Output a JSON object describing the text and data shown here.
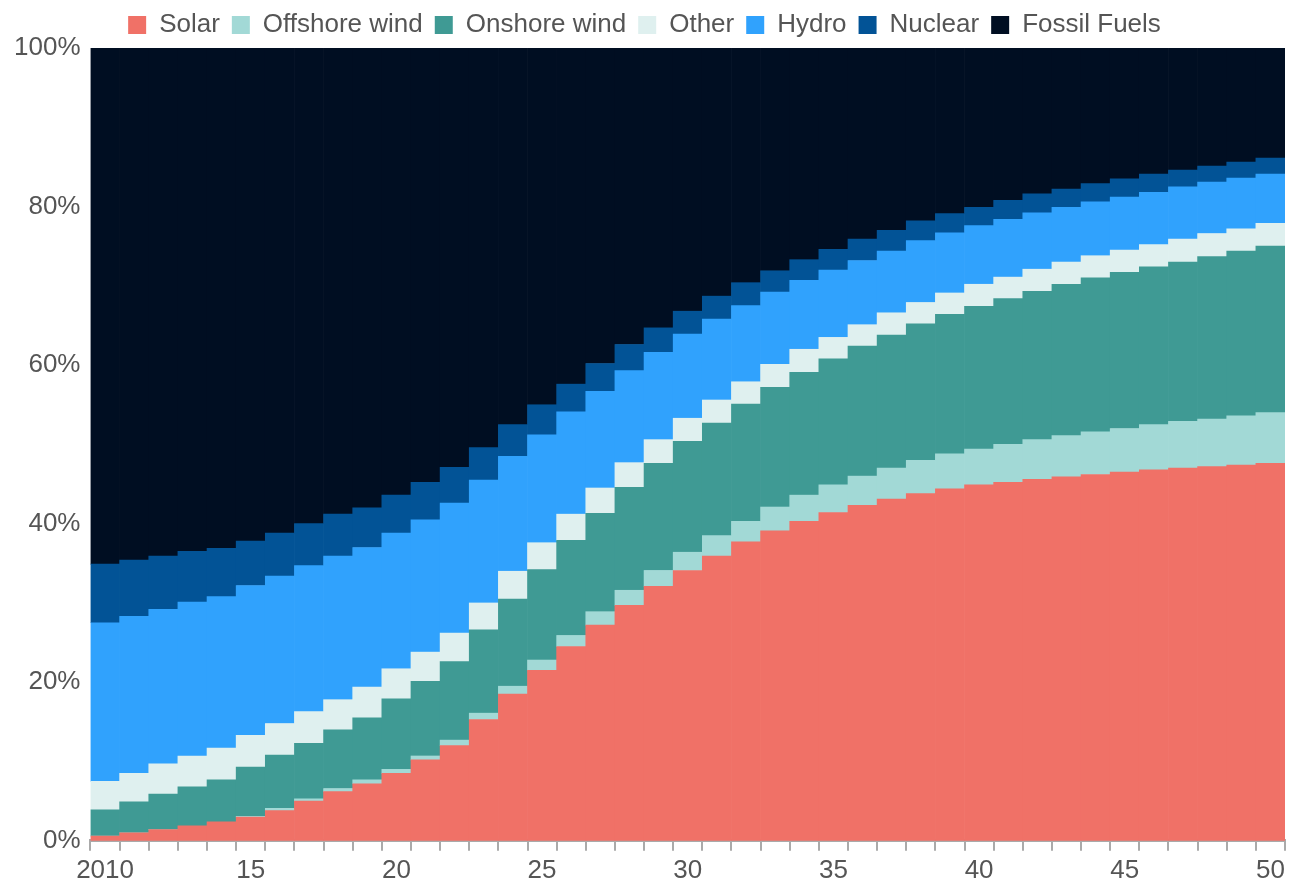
{
  "chart_data": {
    "type": "bar",
    "stacked": true,
    "legend": "top",
    "grid": false,
    "categories": [
      "2010",
      null,
      null,
      null,
      null,
      "15",
      null,
      null,
      null,
      null,
      "20",
      null,
      null,
      null,
      null,
      "25",
      null,
      null,
      null,
      null,
      "30",
      null,
      null,
      null,
      null,
      "35",
      null,
      null,
      null,
      null,
      "40",
      null,
      null,
      null,
      null,
      "45",
      null,
      null,
      null,
      null,
      "50"
    ],
    "ylim": [
      0,
      100
    ],
    "yticks": [
      {
        "value": 0,
        "label": "0%"
      },
      {
        "value": 20,
        "label": "20%"
      },
      {
        "value": 40,
        "label": "40%"
      },
      {
        "value": 60,
        "label": "60%"
      },
      {
        "value": 80,
        "label": "80%"
      },
      {
        "value": 100,
        "label": "100%"
      }
    ],
    "series": [
      {
        "name": "Solar",
        "color": "#f07167",
        "values": [
          0.6,
          1.0,
          1.4,
          1.9,
          2.4,
          3.0,
          3.8,
          5.0,
          6.2,
          7.2,
          8.5,
          10.2,
          12.0,
          15.3,
          18.5,
          21.5,
          24.5,
          27.2,
          29.7,
          32.1,
          34.1,
          35.9,
          37.7,
          39.1,
          40.3,
          41.4,
          42.3,
          43.1,
          43.8,
          44.4,
          44.9,
          45.2,
          45.6,
          45.9,
          46.2,
          46.5,
          46.8,
          47.0,
          47.2,
          47.4,
          47.6
        ]
      },
      {
        "name": "Offshore wind",
        "color": "#a2d9d6",
        "values": [
          0,
          0,
          0,
          null,
          null,
          0.1,
          0.3,
          0.3,
          0.4,
          0.5,
          0.5,
          0.5,
          0.7,
          0.8,
          1.0,
          1.3,
          1.4,
          1.7,
          1.9,
          2.0,
          2.3,
          2.6,
          2.6,
          3.0,
          3.3,
          3.5,
          3.7,
          3.9,
          4.2,
          4.4,
          4.5,
          4.8,
          5.0,
          5.2,
          5.4,
          5.5,
          5.7,
          5.9,
          6.0,
          6.2,
          6.4
        ]
      },
      {
        "name": "Onshore wind",
        "color": "#3f9a94",
        "values": [
          3.3,
          3.9,
          4.5,
          4.9,
          5.3,
          6.2,
          6.7,
          7.0,
          7.4,
          7.8,
          8.9,
          9.4,
          9.9,
          10.5,
          11.0,
          11.4,
          12.0,
          12.4,
          13.0,
          13.5,
          14.0,
          14.2,
          14.8,
          15.1,
          15.5,
          15.9,
          16.4,
          16.8,
          17.2,
          17.6,
          18.0,
          18.4,
          18.7,
          19.1,
          19.4,
          19.7,
          19.9,
          20.1,
          20.5,
          20.8,
          21.0
        ]
      },
      {
        "name": "Other",
        "color": "#dff0ef",
        "values": [
          3.6,
          3.6,
          3.8,
          3.9,
          4.0,
          4.0,
          4.0,
          4.0,
          3.8,
          3.9,
          3.8,
          3.7,
          3.6,
          3.4,
          3.5,
          3.4,
          3.3,
          3.2,
          3.1,
          3.0,
          2.9,
          2.9,
          2.8,
          2.9,
          2.9,
          2.7,
          2.7,
          2.8,
          2.7,
          2.7,
          2.8,
          2.7,
          2.8,
          2.8,
          2.8,
          2.8,
          2.8,
          2.9,
          2.9,
          2.8,
          2.9
        ]
      },
      {
        "name": "Hydro",
        "color": "#30a2fd",
        "values": [
          20.0,
          19.8,
          19.5,
          19.4,
          19.1,
          18.9,
          18.6,
          18.4,
          18.1,
          17.6,
          17.1,
          16.7,
          16.4,
          15.5,
          14.5,
          13.6,
          12.9,
          12.2,
          11.6,
          11.0,
          10.6,
          10.2,
          9.6,
          9.1,
          8.7,
          8.5,
          8.1,
          7.8,
          7.8,
          7.6,
          7.4,
          7.3,
          7.1,
          6.9,
          6.8,
          6.7,
          6.6,
          6.6,
          6.5,
          6.4,
          6.2
        ]
      },
      {
        "name": "Nuclear",
        "color": "#025396",
        "values": [
          7.4,
          7.1,
          6.7,
          6.4,
          6.1,
          5.6,
          5.4,
          5.3,
          5.3,
          5.0,
          4.8,
          4.7,
          4.5,
          4.1,
          4.0,
          3.8,
          3.5,
          3.5,
          3.3,
          3.1,
          2.9,
          2.9,
          2.9,
          2.7,
          2.6,
          2.6,
          2.7,
          2.6,
          2.5,
          2.4,
          2.3,
          2.4,
          2.4,
          2.3,
          2.3,
          2.3,
          2.3,
          2.1,
          2.0,
          2.0,
          2.0
        ]
      },
      {
        "name": "Fossil Fuels",
        "color": "#000e22",
        "values": [
          65.1,
          64.6,
          64.1,
          63.5,
          63.1,
          62.2,
          61.2,
          60.0,
          58.8,
          58.0,
          56.4,
          54.8,
          52.9,
          50.4,
          47.5,
          45.0,
          42.4,
          39.8,
          37.4,
          35.3,
          33.2,
          31.3,
          29.6,
          28.1,
          26.7,
          25.4,
          24.1,
          23.0,
          21.8,
          20.9,
          20.1,
          19.2,
          18.4,
          17.8,
          17.1,
          16.5,
          15.9,
          15.4,
          14.9,
          14.4,
          13.9
        ]
      }
    ]
  }
}
